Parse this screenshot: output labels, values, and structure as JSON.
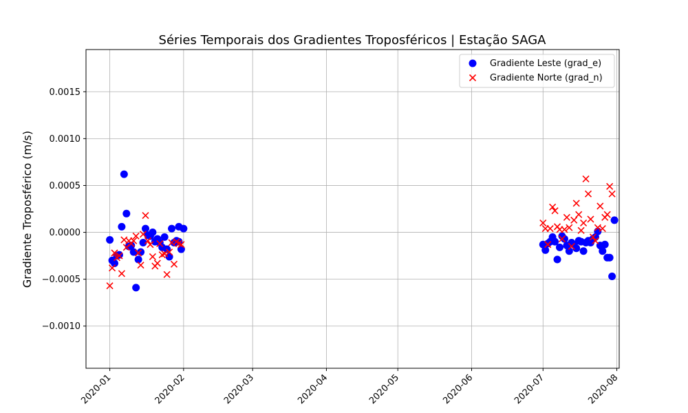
{
  "chart_data": {
    "type": "scatter",
    "title": "Séries Temporais dos Gradientes Troposféricos | Estação SAGA",
    "xlabel": "",
    "ylabel": "Gradiente Troposférico (m/s)",
    "x_ticks": [
      "2020-01",
      "2020-02",
      "2020-03",
      "2020-04",
      "2020-05",
      "2020-06",
      "2020-07",
      "2020-08"
    ],
    "y_ticks": [
      "−0.0010",
      "−0.0005",
      "0.0000",
      "0.0005",
      "0.0010",
      "0.0015"
    ],
    "xlim": [
      "2019-12-22",
      "2020-08-02"
    ],
    "ylim": [
      -0.00145,
      0.00195
    ],
    "grid": true,
    "legend_position": "upper right",
    "series": [
      {
        "name": "Gradiente Leste (grad_e)",
        "marker": "circle",
        "color": "#0000ff",
        "points": [
          [
            "2020-01-01",
            -8e-05
          ],
          [
            "2020-01-02",
            -0.0003
          ],
          [
            "2020-01-03",
            -0.00033
          ],
          [
            "2020-01-04",
            -0.00025
          ],
          [
            "2020-01-05",
            -0.00024
          ],
          [
            "2020-01-06",
            6e-05
          ],
          [
            "2020-01-07",
            0.00062
          ],
          [
            "2020-01-08",
            0.0002
          ],
          [
            "2020-01-09",
            -0.00015
          ],
          [
            "2020-01-10",
            -0.00014
          ],
          [
            "2020-01-11",
            -0.00021
          ],
          [
            "2020-01-12",
            -0.00059
          ],
          [
            "2020-01-13",
            -0.00029
          ],
          [
            "2020-01-14",
            -0.00021
          ],
          [
            "2020-01-15",
            -0.00011
          ],
          [
            "2020-01-16",
            4e-05
          ],
          [
            "2020-01-17",
            -3e-05
          ],
          [
            "2020-01-18",
            -4e-05
          ],
          [
            "2020-01-19",
            0.0
          ],
          [
            "2020-01-20",
            -0.0001
          ],
          [
            "2020-01-21",
            -7e-05
          ],
          [
            "2020-01-22",
            -0.00011
          ],
          [
            "2020-01-23",
            -0.00016
          ],
          [
            "2020-01-24",
            -5e-05
          ],
          [
            "2020-01-25",
            -0.00018
          ],
          [
            "2020-01-26",
            -0.00026
          ],
          [
            "2020-01-27",
            4e-05
          ],
          [
            "2020-01-28",
            -0.00011
          ],
          [
            "2020-01-29",
            -9e-05
          ],
          [
            "2020-01-30",
            -0.0001
          ],
          [
            "2020-01-30",
            6e-05
          ],
          [
            "2020-01-31",
            -0.00018
          ],
          [
            "2020-02-01",
            4e-05
          ],
          [
            "2020-07-01",
            -0.00013
          ],
          [
            "2020-07-02",
            -0.00019
          ],
          [
            "2020-07-03",
            -0.00012
          ],
          [
            "2020-07-04",
            -0.0001
          ],
          [
            "2020-07-05",
            -5e-05
          ],
          [
            "2020-07-06",
            -0.0001
          ],
          [
            "2020-07-07",
            -0.00029
          ],
          [
            "2020-07-08",
            -0.00016
          ],
          [
            "2020-07-09",
            -4e-05
          ],
          [
            "2020-07-10",
            -7e-05
          ],
          [
            "2020-07-11",
            -0.00014
          ],
          [
            "2020-07-12",
            -0.0002
          ],
          [
            "2020-07-13",
            -0.00011
          ],
          [
            "2020-07-14",
            -0.00013
          ],
          [
            "2020-07-15",
            -0.00017
          ],
          [
            "2020-07-16",
            -9e-05
          ],
          [
            "2020-07-17",
            -0.0001
          ],
          [
            "2020-07-18",
            -0.0002
          ],
          [
            "2020-07-19",
            -0.00011
          ],
          [
            "2020-07-20",
            -9e-05
          ],
          [
            "2020-07-21",
            -0.00011
          ],
          [
            "2020-07-22",
            -7e-05
          ],
          [
            "2020-07-23",
            -5e-05
          ],
          [
            "2020-07-24",
            1e-05
          ],
          [
            "2020-07-25",
            -0.00014
          ],
          [
            "2020-07-26",
            -0.0002
          ],
          [
            "2020-07-27",
            -0.00013
          ],
          [
            "2020-07-28",
            -0.00027
          ],
          [
            "2020-07-29",
            -0.00027
          ],
          [
            "2020-07-30",
            -0.00047
          ],
          [
            "2020-07-31",
            0.00013
          ]
        ]
      },
      {
        "name": "Gradiente Norte (grad_n)",
        "marker": "x",
        "color": "#ff0000",
        "points": [
          [
            "2020-01-01",
            -0.00057
          ],
          [
            "2020-01-02",
            -0.00038
          ],
          [
            "2020-01-03",
            -0.00022
          ],
          [
            "2020-01-04",
            -0.00027
          ],
          [
            "2020-01-05",
            -0.00025
          ],
          [
            "2020-01-06",
            -0.00044
          ],
          [
            "2020-01-07",
            -8e-05
          ],
          [
            "2020-01-08",
            -0.00016
          ],
          [
            "2020-01-09",
            -9e-05
          ],
          [
            "2020-01-10",
            -0.00012
          ],
          [
            "2020-01-11",
            -9e-05
          ],
          [
            "2020-01-12",
            -4e-05
          ],
          [
            "2020-01-13",
            -0.00022
          ],
          [
            "2020-01-14",
            -0.00035
          ],
          [
            "2020-01-15",
            -2e-05
          ],
          [
            "2020-01-16",
            0.00018
          ],
          [
            "2020-01-17",
            -9e-05
          ],
          [
            "2020-01-18",
            -0.00013
          ],
          [
            "2020-01-19",
            -0.00026
          ],
          [
            "2020-01-20",
            -0.00036
          ],
          [
            "2020-01-21",
            -0.00033
          ],
          [
            "2020-01-22",
            -0.00012
          ],
          [
            "2020-01-23",
            -0.00024
          ],
          [
            "2020-01-24",
            -0.00023
          ],
          [
            "2020-01-25",
            -0.00045
          ],
          [
            "2020-01-26",
            -0.00021
          ],
          [
            "2020-01-27",
            -0.00011
          ],
          [
            "2020-01-28",
            -0.00034
          ],
          [
            "2020-01-29",
            -0.0001
          ],
          [
            "2020-01-30",
            -0.00012
          ],
          [
            "2020-01-31",
            -0.00013
          ],
          [
            "2020-07-01",
            0.0001
          ],
          [
            "2020-07-02",
            4e-05
          ],
          [
            "2020-07-03",
            -0.00013
          ],
          [
            "2020-07-04",
            4e-05
          ],
          [
            "2020-07-05",
            0.00027
          ],
          [
            "2020-07-06",
            0.00023
          ],
          [
            "2020-07-07",
            6e-05
          ],
          [
            "2020-07-08",
            3e-05
          ],
          [
            "2020-07-09",
            -7e-05
          ],
          [
            "2020-07-10",
            3e-05
          ],
          [
            "2020-07-11",
            0.00016
          ],
          [
            "2020-07-12",
            5e-05
          ],
          [
            "2020-07-13",
            -0.00015
          ],
          [
            "2020-07-14",
            0.00013
          ],
          [
            "2020-07-15",
            0.00031
          ],
          [
            "2020-07-16",
            0.00019
          ],
          [
            "2020-07-17",
            2e-05
          ],
          [
            "2020-07-18",
            0.0001
          ],
          [
            "2020-07-19",
            0.00057
          ],
          [
            "2020-07-20",
            0.00041
          ],
          [
            "2020-07-21",
            0.00014
          ],
          [
            "2020-07-22",
            -5e-05
          ],
          [
            "2020-07-23",
            -9e-05
          ],
          [
            "2020-07-24",
            5e-05
          ],
          [
            "2020-07-25",
            0.00028
          ],
          [
            "2020-07-26",
            4e-05
          ],
          [
            "2020-07-27",
            0.00016
          ],
          [
            "2020-07-28",
            0.00019
          ],
          [
            "2020-07-29",
            0.00049
          ],
          [
            "2020-07-30",
            0.00041
          ]
        ]
      }
    ]
  }
}
